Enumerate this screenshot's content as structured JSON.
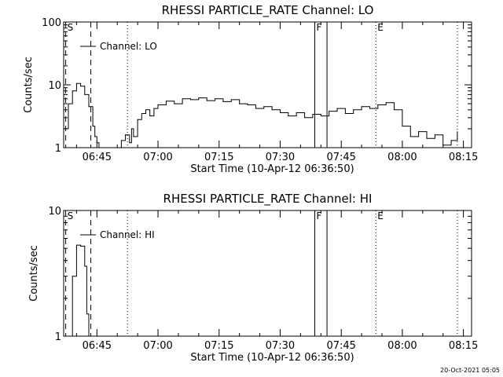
{
  "chart_data": [
    {
      "type": "line",
      "title": "RHESSI PARTICLE_RATE Channel: LO",
      "xlabel": "Start Time (10-Apr-12 06:36:50)",
      "ylabel": "Counts/sec",
      "yscale": "log",
      "xlim": [
        "06:36:50",
        "08:17:00"
      ],
      "ylim": [
        1,
        100
      ],
      "xticks": [
        "06:45",
        "07:00",
        "07:15",
        "07:30",
        "07:45",
        "08:00",
        "08:15"
      ],
      "yticks": [
        "1",
        "10",
        "100"
      ],
      "legend": "top-left",
      "series": [
        {
          "name": "Channel: LO",
          "x": [
            "06:37:00",
            "06:38:00",
            "06:39:00",
            "06:40:00",
            "06:41:00",
            "06:42:00",
            "06:43:00",
            "06:44:00",
            "06:44:30",
            "06:45:00",
            "06:45:30",
            "06:49:00",
            "06:51:00",
            "06:52:00",
            "06:53:00",
            "06:53:30",
            "06:54:00",
            "06:55:00",
            "06:56:00",
            "06:57:00",
            "06:58:00",
            "06:59:00",
            "07:00:00",
            "07:02:00",
            "07:04:00",
            "07:06:00",
            "07:08:00",
            "07:10:00",
            "07:12:00",
            "07:14:00",
            "07:16:00",
            "07:18:00",
            "07:20:00",
            "07:22:00",
            "07:24:00",
            "07:26:00",
            "07:28:00",
            "07:30:00",
            "07:32:00",
            "07:34:00",
            "07:36:00",
            "07:38:00",
            "07:40:00",
            "07:42:00",
            "07:44:00",
            "07:46:00",
            "07:48:00",
            "07:50:00",
            "07:52:00",
            "07:54:00",
            "07:56:00",
            "07:58:00",
            "08:00:00",
            "08:02:00",
            "08:04:00",
            "08:06:00",
            "08:08:00",
            "08:10:00",
            "08:12:00",
            "08:13:30"
          ],
          "y": [
            2.0,
            5.0,
            8.0,
            10.5,
            9.5,
            7.0,
            4.5,
            2.2,
            1.5,
            1.2,
            0.9,
            1.0,
            1.3,
            1.6,
            1.2,
            2.0,
            1.5,
            2.8,
            3.5,
            4.0,
            3.2,
            4.2,
            4.8,
            5.5,
            5.0,
            6.0,
            5.8,
            6.2,
            5.6,
            6.0,
            5.4,
            5.8,
            5.0,
            4.8,
            4.2,
            4.5,
            4.0,
            3.6,
            3.2,
            3.6,
            3.0,
            3.4,
            3.2,
            3.8,
            4.2,
            3.5,
            4.0,
            4.5,
            4.2,
            4.8,
            5.2,
            4.0,
            2.2,
            1.5,
            1.8,
            1.4,
            1.6,
            1.1,
            1.3,
            1.8
          ]
        }
      ],
      "markers": [
        {
          "label": "S",
          "time": "06:37:20",
          "style": "dashed"
        },
        {
          "label": "",
          "time": "06:43:30",
          "style": "dashed"
        },
        {
          "label": "",
          "time": "06:52:30",
          "style": "dotted"
        },
        {
          "label": "F",
          "time": "07:38:30",
          "style": "solid"
        },
        {
          "label": "",
          "time": "07:41:30",
          "style": "solid"
        },
        {
          "label": "E",
          "time": "07:53:30",
          "style": "dotted"
        },
        {
          "label": "",
          "time": "08:13:30",
          "style": "dotted"
        }
      ]
    },
    {
      "type": "line",
      "title": "RHESSI PARTICLE_RATE Channel: HI",
      "xlabel": "Start Time (10-Apr-12 06:36:50)",
      "ylabel": "Counts/sec",
      "yscale": "log",
      "xlim": [
        "06:36:50",
        "08:17:00"
      ],
      "ylim": [
        1,
        10
      ],
      "xticks": [
        "06:45",
        "07:00",
        "07:15",
        "07:30",
        "07:45",
        "08:00",
        "08:15"
      ],
      "yticks": [
        "1",
        "10"
      ],
      "legend": "top-left",
      "series": [
        {
          "name": "Channel: HI",
          "x": [
            "06:37:30",
            "06:38:00",
            "06:39:00",
            "06:40:00",
            "06:41:00",
            "06:42:00",
            "06:42:30",
            "06:43:00"
          ],
          "y": [
            0.9,
            1.0,
            3.0,
            5.3,
            5.2,
            3.6,
            1.5,
            0.9
          ]
        }
      ],
      "markers": [
        {
          "label": "S",
          "time": "06:37:20",
          "style": "dashed"
        },
        {
          "label": "",
          "time": "06:43:30",
          "style": "dashed"
        },
        {
          "label": "",
          "time": "06:52:30",
          "style": "dotted"
        },
        {
          "label": "F",
          "time": "07:38:30",
          "style": "solid"
        },
        {
          "label": "",
          "time": "07:41:30",
          "style": "solid"
        },
        {
          "label": "E",
          "time": "07:53:30",
          "style": "dotted"
        },
        {
          "label": "",
          "time": "08:13:30",
          "style": "dotted"
        }
      ]
    }
  ],
  "footer": {
    "timestamp": "20-Oct-2021 05:05"
  }
}
